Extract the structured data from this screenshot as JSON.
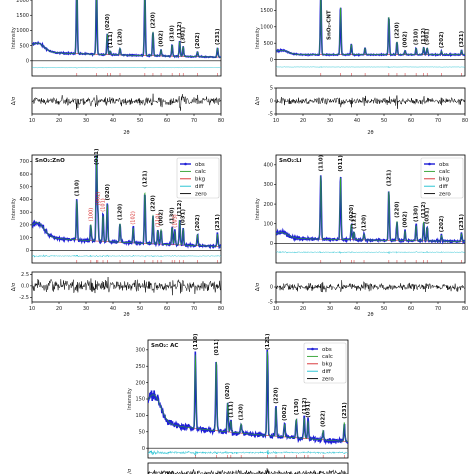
{
  "chart_data": [
    {
      "type": "line",
      "panel_label": "",
      "xlabel": "2θ",
      "ylabel": "Intensity",
      "diff_ylabel": "Δ/σ",
      "xlim": [
        10,
        80
      ],
      "ylim": [
        -500,
        2200
      ],
      "diff_ylim": [
        -4,
        4
      ],
      "xticks": [
        "10",
        "20",
        "30",
        "40",
        "50",
        "60",
        "70",
        "80"
      ],
      "yticks": [
        "0",
        "500",
        "1000",
        "1500",
        "2000"
      ],
      "diff_yticks": [],
      "background": {
        "start": 320,
        "end": 120
      },
      "peaks": [
        {
          "x": 26.6,
          "y": 2400,
          "label": ""
        },
        {
          "x": 33.9,
          "y": 2350,
          "label": ""
        },
        {
          "x": 37.9,
          "y": 700,
          "label": "(020)"
        },
        {
          "x": 39.0,
          "y": 120,
          "label": "(111)"
        },
        {
          "x": 42.6,
          "y": 220,
          "label": "(120)"
        },
        {
          "x": 51.8,
          "y": 2100,
          "label": ""
        },
        {
          "x": 54.8,
          "y": 800,
          "label": "(220)"
        },
        {
          "x": 57.8,
          "y": 200,
          "label": "(002)"
        },
        {
          "x": 61.9,
          "y": 380,
          "label": "(310)"
        },
        {
          "x": 64.7,
          "y": 500,
          "label": "(112)"
        },
        {
          "x": 66.0,
          "y": 330,
          "label": "(301)"
        },
        {
          "x": 71.3,
          "y": 160,
          "label": "(202)"
        },
        {
          "x": 78.7,
          "y": 300,
          "label": "(231)"
        }
      ]
    },
    {
      "type": "line",
      "panel_label": "",
      "xlabel": "2θ",
      "ylabel": "Intensity",
      "diff_ylabel": "Δ/σ",
      "xlim": [
        10,
        80
      ],
      "ylim": [
        -500,
        2000
      ],
      "diff_ylim": [
        -5,
        5
      ],
      "xticks": [
        "10",
        "20",
        "30",
        "40",
        "50",
        "60",
        "70",
        "80"
      ],
      "yticks": [
        "0",
        "500",
        "1000",
        "1500"
      ],
      "diff_yticks": [
        "-5",
        "0",
        "5"
      ],
      "annotation": "SnO₂-CNT",
      "background": {
        "start": 150,
        "end": 150
      },
      "peaks": [
        {
          "x": 26.6,
          "y": 1900,
          "label": ""
        },
        {
          "x": 33.9,
          "y": 1500,
          "label": ""
        },
        {
          "x": 37.9,
          "y": 320,
          "label": ""
        },
        {
          "x": 43.0,
          "y": 200,
          "label": ""
        },
        {
          "x": 51.8,
          "y": 1200,
          "label": ""
        },
        {
          "x": 54.8,
          "y": 400,
          "label": "(220)"
        },
        {
          "x": 57.8,
          "y": 120,
          "label": "(002)"
        },
        {
          "x": 61.9,
          "y": 200,
          "label": "(310)"
        },
        {
          "x": 64.7,
          "y": 220,
          "label": "(112)"
        },
        {
          "x": 66.0,
          "y": 200,
          "label": "(301)"
        },
        {
          "x": 71.3,
          "y": 110,
          "label": "(202)"
        },
        {
          "x": 78.7,
          "y": 130,
          "label": "(321)"
        }
      ]
    },
    {
      "type": "line",
      "panel_label": "SnO₂:ZnO",
      "xlabel": "2θ",
      "ylabel": "Intensity",
      "diff_ylabel": "Δ/σ",
      "xlim": [
        10,
        80
      ],
      "ylim": [
        -100,
        750
      ],
      "diff_ylim": [
        -3.5,
        3
      ],
      "xticks": [
        "10",
        "20",
        "30",
        "40",
        "50",
        "60",
        "70",
        "80"
      ],
      "yticks": [
        "0",
        "100",
        "200",
        "300",
        "400",
        "500",
        "600",
        "700"
      ],
      "diff_yticks": [
        "-2.5",
        "0.0",
        "2.5"
      ],
      "legend": [
        "obs",
        "calc",
        "bkg",
        "diff",
        "zero"
      ],
      "background": {
        "start": 120,
        "end": 30
      },
      "peaks": [
        {
          "x": 26.6,
          "y": 320,
          "label": "(110)"
        },
        {
          "x": 31.8,
          "y": 130,
          "label": "(100)",
          "red": true
        },
        {
          "x": 33.9,
          "y": 700,
          "label": "(011)"
        },
        {
          "x": 34.4,
          "y": 230,
          "label": "(002)",
          "red": true
        },
        {
          "x": 36.3,
          "y": 210,
          "label": "(101)",
          "red": true
        },
        {
          "x": 37.9,
          "y": 300,
          "label": "(020)"
        },
        {
          "x": 42.6,
          "y": 150,
          "label": "(120)"
        },
        {
          "x": 47.5,
          "y": 120,
          "label": "(102)",
          "red": true
        },
        {
          "x": 51.8,
          "y": 420,
          "label": "(121)"
        },
        {
          "x": 54.8,
          "y": 230,
          "label": "(220)"
        },
        {
          "x": 56.6,
          "y": 110,
          "label": "(110)",
          "red": true
        },
        {
          "x": 57.8,
          "y": 120,
          "label": "(002)"
        },
        {
          "x": 61.9,
          "y": 140,
          "label": "(130)"
        },
        {
          "x": 62.9,
          "y": 110,
          "label": "(103)",
          "red": true
        },
        {
          "x": 64.7,
          "y": 200,
          "label": "(112)"
        },
        {
          "x": 66.0,
          "y": 130,
          "label": "(031)"
        },
        {
          "x": 71.3,
          "y": 90,
          "label": "(202)"
        },
        {
          "x": 78.7,
          "y": 100,
          "label": "(231)"
        }
      ]
    },
    {
      "type": "line",
      "panel_label": "SnO₂:Li",
      "xlabel": "2θ",
      "ylabel": "Intensity",
      "diff_ylabel": "Δ/σ",
      "xlim": [
        10,
        80
      ],
      "ylim": [
        -100,
        450
      ],
      "diff_ylim": [
        -5,
        5
      ],
      "xticks": [
        "10",
        "20",
        "30",
        "40",
        "50",
        "60",
        "70",
        "80"
      ],
      "yticks": [
        "0",
        "100",
        "200",
        "300",
        "400"
      ],
      "diff_yticks": [
        "-5",
        "0"
      ],
      "legend": [
        "obs",
        "calc",
        "bkg",
        "diff",
        "zero"
      ],
      "background": {
        "start": 30,
        "end": 10
      },
      "peaks": [
        {
          "x": 26.6,
          "y": 330,
          "label": "(110)"
        },
        {
          "x": 33.9,
          "y": 330,
          "label": "(011)"
        },
        {
          "x": 37.9,
          "y": 80,
          "label": "(020)"
        },
        {
          "x": 38.9,
          "y": 40,
          "label": "(111)"
        },
        {
          "x": 42.6,
          "y": 30,
          "label": "(120)"
        },
        {
          "x": 51.8,
          "y": 260,
          "label": "(121)"
        },
        {
          "x": 54.8,
          "y": 100,
          "label": "(220)"
        },
        {
          "x": 57.8,
          "y": 50,
          "label": "(002)"
        },
        {
          "x": 61.9,
          "y": 80,
          "label": "(130)"
        },
        {
          "x": 64.7,
          "y": 100,
          "label": "(112)"
        },
        {
          "x": 66.0,
          "y": 70,
          "label": "(031)"
        },
        {
          "x": 71.3,
          "y": 30,
          "label": "(202)"
        },
        {
          "x": 78.7,
          "y": 40,
          "label": "(231)"
        }
      ]
    },
    {
      "type": "line",
      "panel_label": "SnO₂: AC",
      "xlabel": "2θ",
      "ylabel": "Intensity",
      "diff_ylabel": "Δ/σ",
      "xlim": [
        10,
        80
      ],
      "ylim": [
        -30,
        330
      ],
      "diff_ylim": [
        -4,
        4
      ],
      "xticks": [],
      "yticks": [
        "0",
        "50",
        "100",
        "150",
        "200",
        "250",
        "300"
      ],
      "diff_yticks": [
        "-2.5"
      ],
      "legend": [
        "obs",
        "calc",
        "bkg",
        "diff",
        "zero"
      ],
      "background": {
        "start": 90,
        "end": 20
      },
      "peaks": [
        {
          "x": 26.6,
          "y": 230,
          "label": "(110)"
        },
        {
          "x": 33.9,
          "y": 220,
          "label": "(011)"
        },
        {
          "x": 37.9,
          "y": 90,
          "label": "(020)"
        },
        {
          "x": 39.0,
          "y": 35,
          "label": "(111)"
        },
        {
          "x": 42.6,
          "y": 30,
          "label": "(120)"
        },
        {
          "x": 51.8,
          "y": 270,
          "label": "(121)"
        },
        {
          "x": 54.8,
          "y": 90,
          "label": "(220)"
        },
        {
          "x": 57.8,
          "y": 40,
          "label": "(002)"
        },
        {
          "x": 61.9,
          "y": 60,
          "label": "(130)"
        },
        {
          "x": 64.7,
          "y": 65,
          "label": "(112)"
        },
        {
          "x": 66.0,
          "y": 55,
          "label": "(031)"
        },
        {
          "x": 71.3,
          "y": 30,
          "label": "(022)"
        },
        {
          "x": 78.7,
          "y": 60,
          "label": "(231)"
        }
      ]
    }
  ],
  "colors": {
    "obs": "#1f1fd6",
    "calc": "#2ca02c",
    "bkg": "#d62728",
    "diff": "#17becf",
    "zero": "#000000",
    "residual": "#000000",
    "tick_marks": "#d62728"
  }
}
